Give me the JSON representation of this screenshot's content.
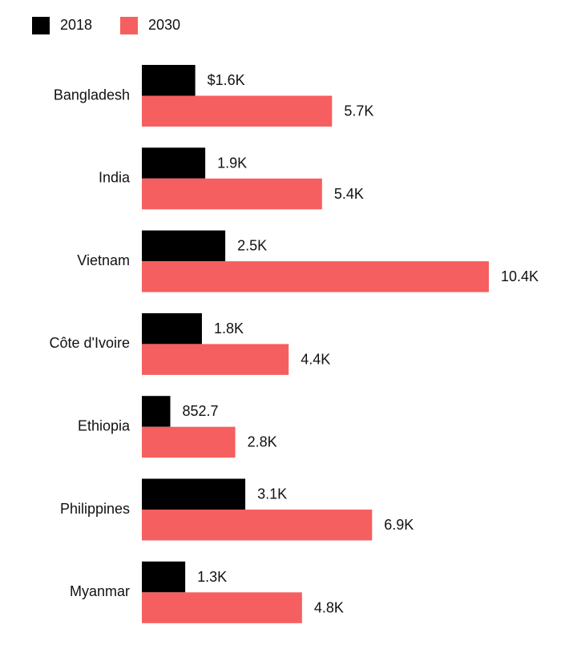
{
  "chart_data": {
    "type": "bar",
    "orientation": "horizontal",
    "categories": [
      "Bangladesh",
      "India",
      "Vietnam",
      "Côte d'Ivoire",
      "Ethiopia",
      "Philippines",
      "Myanmar"
    ],
    "series": [
      {
        "name": "2018",
        "color": "#000000",
        "values": [
          1600,
          1900,
          2500,
          1800,
          852.7,
          3100,
          1300
        ],
        "value_labels": [
          "$1.6K",
          "1.9K",
          "2.5K",
          "1.8K",
          "852.7",
          "3.1K",
          "1.3K"
        ]
      },
      {
        "name": "2030",
        "color": "#f65f5f",
        "values": [
          5700,
          5400,
          10400,
          4400,
          2800,
          6900,
          4800
        ],
        "value_labels": [
          "5.7K",
          "5.4K",
          "10.4K",
          "4.4K",
          "2.8K",
          "6.9K",
          "4.8K"
        ]
      }
    ]
  }
}
